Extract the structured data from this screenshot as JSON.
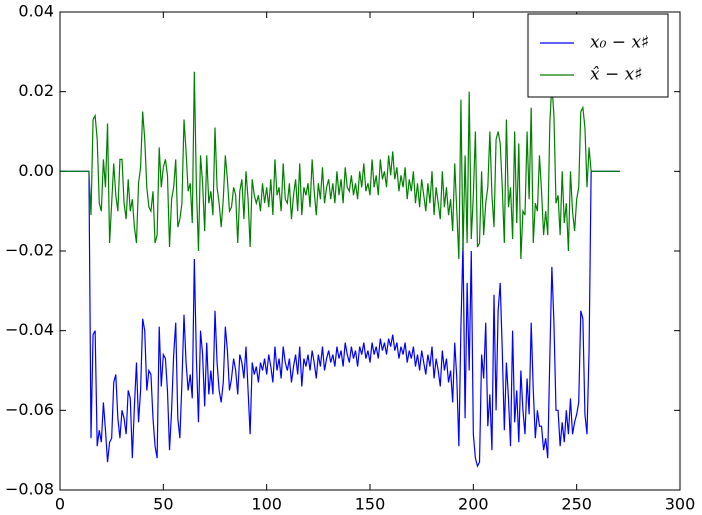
{
  "chart_data": {
    "type": "line",
    "x": [
      0,
      1,
      2,
      3,
      4,
      5,
      6,
      7,
      8,
      9,
      10,
      11,
      12,
      13,
      14,
      15,
      16,
      17,
      18,
      19,
      20,
      21,
      22,
      23,
      24,
      25,
      26,
      27,
      28,
      29,
      30,
      31,
      32,
      33,
      34,
      35,
      36,
      37,
      38,
      39,
      40,
      41,
      42,
      43,
      44,
      45,
      46,
      47,
      48,
      49,
      50,
      51,
      52,
      53,
      54,
      55,
      56,
      57,
      58,
      59,
      60,
      61,
      62,
      63,
      64,
      65,
      66,
      67,
      68,
      69,
      70,
      71,
      72,
      73,
      74,
      75,
      76,
      77,
      78,
      79,
      80,
      81,
      82,
      83,
      84,
      85,
      86,
      87,
      88,
      89,
      90,
      91,
      92,
      93,
      94,
      95,
      96,
      97,
      98,
      99,
      100,
      101,
      102,
      103,
      104,
      105,
      106,
      107,
      108,
      109,
      110,
      111,
      112,
      113,
      114,
      115,
      116,
      117,
      118,
      119,
      120,
      121,
      122,
      123,
      124,
      125,
      126,
      127,
      128,
      129,
      130,
      131,
      132,
      133,
      134,
      135,
      136,
      137,
      138,
      139,
      140,
      141,
      142,
      143,
      144,
      145,
      146,
      147,
      148,
      149,
      150,
      151,
      152,
      153,
      154,
      155,
      156,
      157,
      158,
      159,
      160,
      161,
      162,
      163,
      164,
      165,
      166,
      167,
      168,
      169,
      170,
      171,
      172,
      173,
      174,
      175,
      176,
      177,
      178,
      179,
      180,
      181,
      182,
      183,
      184,
      185,
      186,
      187,
      188,
      189,
      190,
      191,
      192,
      193,
      194,
      195,
      196,
      197,
      198,
      199,
      200,
      201,
      202,
      203,
      204,
      205,
      206,
      207,
      208,
      209,
      210,
      211,
      212,
      213,
      214,
      215,
      216,
      217,
      218,
      219,
      220,
      221,
      222,
      223,
      224,
      225,
      226,
      227,
      228,
      229,
      230,
      231,
      232,
      233,
      234,
      235,
      236,
      237,
      238,
      239,
      240,
      241,
      242,
      243,
      244,
      245,
      246,
      247,
      248,
      249,
      250,
      251,
      252,
      253,
      254,
      255,
      256,
      257,
      258,
      259,
      260,
      261,
      262,
      263,
      264,
      265,
      266,
      267,
      268,
      269,
      270,
      271
    ],
    "series": [
      {
        "name": "x₀ − x♯",
        "color": "#0000ff",
        "values": [
          0,
          0,
          0,
          0,
          0,
          0,
          0,
          0,
          0,
          0,
          0,
          0,
          0,
          0,
          0,
          -0.067,
          -0.041,
          -0.04,
          -0.069,
          -0.065,
          -0.068,
          -0.058,
          -0.065,
          -0.073,
          -0.068,
          -0.067,
          -0.053,
          -0.051,
          -0.062,
          -0.067,
          -0.06,
          -0.062,
          -0.066,
          -0.055,
          -0.057,
          -0.072,
          -0.059,
          -0.048,
          -0.063,
          -0.055,
          -0.037,
          -0.04,
          -0.055,
          -0.05,
          -0.051,
          -0.062,
          -0.069,
          -0.072,
          -0.039,
          -0.054,
          -0.046,
          -0.047,
          -0.055,
          -0.07,
          -0.06,
          -0.046,
          -0.038,
          -0.062,
          -0.067,
          -0.053,
          -0.036,
          -0.048,
          -0.055,
          -0.051,
          -0.057,
          -0.022,
          -0.047,
          -0.063,
          -0.04,
          -0.046,
          -0.059,
          -0.043,
          -0.056,
          -0.05,
          -0.056,
          -0.035,
          -0.048,
          -0.055,
          -0.058,
          -0.053,
          -0.039,
          -0.045,
          -0.055,
          -0.052,
          -0.047,
          -0.05,
          -0.056,
          -0.046,
          -0.048,
          -0.052,
          -0.044,
          -0.055,
          -0.066,
          -0.048,
          -0.051,
          -0.049,
          -0.053,
          -0.048,
          -0.05,
          -0.047,
          -0.051,
          -0.046,
          -0.049,
          -0.053,
          -0.044,
          -0.05,
          -0.047,
          -0.052,
          -0.044,
          -0.048,
          -0.05,
          -0.047,
          -0.053,
          -0.049,
          -0.046,
          -0.051,
          -0.044,
          -0.054,
          -0.047,
          -0.049,
          -0.046,
          -0.05,
          -0.045,
          -0.048,
          -0.052,
          -0.046,
          -0.049,
          -0.044,
          -0.05,
          -0.047,
          -0.045,
          -0.048,
          -0.046,
          -0.049,
          -0.044,
          -0.047,
          -0.045,
          -0.049,
          -0.043,
          -0.046,
          -0.048,
          -0.044,
          -0.047,
          -0.045,
          -0.049,
          -0.044,
          -0.046,
          -0.043,
          -0.047,
          -0.045,
          -0.048,
          -0.043,
          -0.046,
          -0.044,
          -0.047,
          -0.042,
          -0.045,
          -0.043,
          -0.046,
          -0.042,
          -0.044,
          -0.041,
          -0.045,
          -0.043,
          -0.047,
          -0.044,
          -0.046,
          -0.043,
          -0.048,
          -0.045,
          -0.047,
          -0.044,
          -0.049,
          -0.046,
          -0.05,
          -0.045,
          -0.048,
          -0.051,
          -0.046,
          -0.049,
          -0.044,
          -0.052,
          -0.047,
          -0.05,
          -0.054,
          -0.045,
          -0.05,
          -0.047,
          -0.053,
          -0.05,
          -0.058,
          -0.043,
          -0.052,
          -0.069,
          -0.039,
          -0.018,
          -0.062,
          -0.028,
          -0.05,
          -0.02,
          -0.066,
          -0.072,
          -0.074,
          -0.073,
          -0.046,
          -0.052,
          -0.038,
          -0.064,
          -0.056,
          -0.07,
          -0.031,
          -0.06,
          -0.035,
          -0.028,
          -0.045,
          -0.065,
          -0.048,
          -0.057,
          -0.069,
          -0.04,
          -0.063,
          -0.055,
          -0.068,
          -0.05,
          -0.06,
          -0.066,
          -0.052,
          -0.061,
          -0.038,
          -0.055,
          -0.067,
          -0.06,
          -0.064,
          -0.064,
          -0.07,
          -0.067,
          -0.072,
          -0.047,
          -0.024,
          -0.038,
          -0.06,
          -0.06,
          -0.069,
          -0.063,
          -0.068,
          -0.06,
          -0.066,
          -0.057,
          -0.066,
          -0.063,
          -0.061,
          -0.058,
          -0.035,
          -0.037,
          -0.061,
          -0.066,
          -0.045,
          0,
          0,
          0,
          0,
          0,
          0,
          0,
          0,
          0,
          0,
          0,
          0,
          0,
          0,
          0
        ]
      },
      {
        "name": "x̂ − x♯",
        "color": "#008000",
        "values": [
          0,
          0,
          0,
          0,
          0,
          0,
          0,
          0,
          0,
          0,
          0,
          0,
          0,
          0,
          0,
          -0.011,
          0.013,
          0.014,
          0.008,
          -0.008,
          -0.01,
          0.003,
          -0.004,
          0.012,
          -0.018,
          -0.008,
          0.002,
          -0.006,
          -0.01,
          0.003,
          0.003,
          -0.008,
          -0.012,
          -0.002,
          -0.01,
          -0.007,
          -0.014,
          -0.018,
          -0.003,
          0.001,
          0.015,
          0.008,
          -0.004,
          -0.009,
          -0.01,
          -0.005,
          -0.018,
          -0.016,
          0.006,
          -0.004,
          0.001,
          0.003,
          -0.001,
          -0.019,
          -0.007,
          -0.004,
          0.003,
          -0.014,
          -0.012,
          -0.008,
          0.013,
          0.005,
          -0.005,
          -0.003,
          -0.013,
          0.025,
          -0.004,
          -0.02,
          0.004,
          -0.003,
          -0.015,
          0.004,
          -0.008,
          -0.005,
          -0.011,
          0.011,
          -0.004,
          -0.008,
          -0.014,
          -0.007,
          0.004,
          -0.002,
          -0.01,
          -0.009,
          -0.004,
          -0.006,
          -0.018,
          -0.005,
          -0.002,
          -0.012,
          0.0,
          -0.007,
          -0.019,
          -0.002,
          -0.006,
          -0.008,
          -0.006,
          -0.01,
          -0.003,
          -0.008,
          -0.004,
          -0.009,
          -0.002,
          -0.011,
          0.003,
          -0.006,
          -0.004,
          -0.01,
          0.002,
          -0.007,
          -0.008,
          -0.003,
          -0.012,
          -0.006,
          -0.002,
          -0.01,
          0.002,
          -0.011,
          -0.004,
          -0.006,
          -0.003,
          -0.009,
          0.003,
          -0.005,
          -0.011,
          -0.003,
          -0.007,
          0.001,
          -0.008,
          -0.004,
          -0.002,
          -0.007,
          -0.003,
          -0.008,
          0.0,
          -0.006,
          -0.002,
          -0.008,
          0.001,
          -0.004,
          -0.005,
          -0.001,
          -0.006,
          -0.003,
          -0.007,
          0.0,
          -0.004,
          0.002,
          -0.005,
          -0.003,
          -0.006,
          0.003,
          -0.004,
          -0.001,
          -0.006,
          0.003,
          -0.002,
          0.0,
          -0.004,
          0.004,
          -0.001,
          0.005,
          -0.002,
          0.001,
          -0.005,
          -0.001,
          -0.004,
          0.001,
          -0.007,
          -0.002,
          -0.005,
          0.0,
          -0.008,
          -0.003,
          -0.009,
          -0.002,
          -0.006,
          -0.01,
          -0.003,
          -0.008,
          0.0,
          -0.011,
          -0.004,
          -0.008,
          -0.012,
          0.0,
          -0.009,
          -0.004,
          -0.011,
          -0.007,
          -0.015,
          0.002,
          -0.01,
          -0.022,
          0.018,
          -0.02,
          0.004,
          -0.018,
          0.02,
          -0.017,
          -0.006,
          0.01,
          -0.019,
          -0.018,
          0.0,
          -0.016,
          -0.008,
          -0.004,
          0.01,
          -0.006,
          -0.014,
          0.008,
          0.01,
          0.007,
          -0.004,
          -0.018,
          0.013,
          -0.009,
          -0.004,
          -0.017,
          0.01,
          -0.013,
          0.007,
          -0.022,
          -0.01,
          -0.011,
          0.01,
          -0.007,
          0.016,
          -0.018,
          -0.008,
          -0.01,
          0.004,
          -0.005,
          -0.016,
          -0.01,
          -0.016,
          0.012,
          0.022,
          0.014,
          -0.008,
          -0.006,
          -0.016,
          0.0,
          -0.013,
          -0.008,
          -0.02,
          0.0,
          -0.01,
          -0.015,
          -0.007,
          -0.004,
          0.015,
          0.016,
          0.011,
          -0.004,
          0.006,
          0,
          0,
          0,
          0,
          0,
          0,
          0,
          0,
          0,
          0,
          0,
          0,
          0,
          0,
          0
        ]
      }
    ],
    "xlim": [
      0,
      300
    ],
    "xticks": [
      0,
      50,
      100,
      150,
      200,
      250,
      300
    ],
    "ylim": [
      -0.08,
      0.04
    ],
    "yticks": [
      {
        "value": -0.08,
        "label": "−0.08"
      },
      {
        "value": -0.06,
        "label": "−0.06"
      },
      {
        "value": -0.04,
        "label": "−0.04"
      },
      {
        "value": -0.02,
        "label": "−0.02"
      },
      {
        "value": 0,
        "label": "0.00"
      },
      0.02,
      0.04
    ],
    "legend": "upper right"
  }
}
